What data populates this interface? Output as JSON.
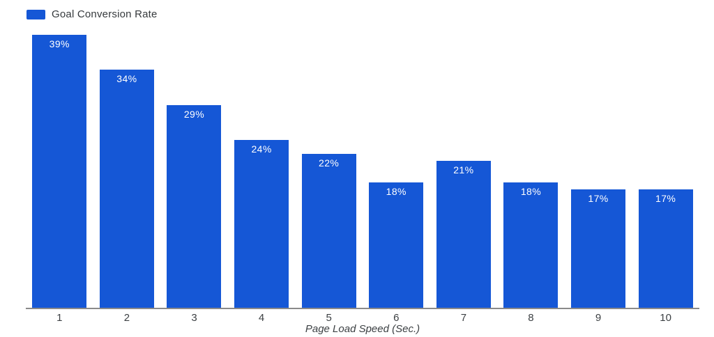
{
  "chart_data": {
    "type": "bar",
    "title": "",
    "legend_entries": [
      "Goal Conversion Rate"
    ],
    "legend_position": "top-left",
    "categories": [
      "1",
      "2",
      "3",
      "4",
      "5",
      "6",
      "7",
      "8",
      "9",
      "10"
    ],
    "series": [
      {
        "name": "Goal Conversion Rate",
        "values": [
          39,
          34,
          29,
          24,
          22,
          18,
          21,
          18,
          17,
          17
        ],
        "value_labels": [
          "39%",
          "34%",
          "29%",
          "24%",
          "22%",
          "18%",
          "21%",
          "18%",
          "17%",
          "17%"
        ]
      }
    ],
    "xlabel": "Page Load Speed (Sec.)",
    "ylabel": "",
    "ylim": [
      0,
      40
    ],
    "grid": false,
    "bar_color": "#1557d6",
    "value_label_color": "#ffffff",
    "axis_line_color": "#8a8a8a",
    "axis_text_color": "#3c4043",
    "background_color": "#ffffff"
  }
}
